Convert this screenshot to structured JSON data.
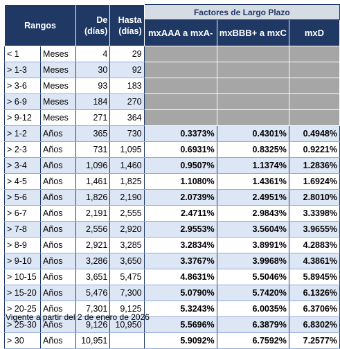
{
  "header": {
    "rangos": "Rangos",
    "de_line1": "De",
    "de_line2": "(días)",
    "hasta_line1": "Hasta",
    "hasta_line2": "(días)",
    "factores": "Factores de Largo Plazo",
    "col_aaa": "mxAAA a mxA-",
    "col_bbb": "mxBBB+ a mxC",
    "col_d": "mxD"
  },
  "rows": [
    {
      "range": "< 1",
      "unit": "Meses",
      "de": "4",
      "hasta": "29",
      "aaa": "",
      "bbb": "",
      "d": "",
      "grey": true
    },
    {
      "range": "> 1-3",
      "unit": "Meses",
      "de": "30",
      "hasta": "92",
      "aaa": "",
      "bbb": "",
      "d": "",
      "grey": true
    },
    {
      "range": "> 3-6",
      "unit": "Meses",
      "de": "93",
      "hasta": "183",
      "aaa": "",
      "bbb": "",
      "d": "",
      "grey": true
    },
    {
      "range": "> 6-9",
      "unit": "Meses",
      "de": "184",
      "hasta": "270",
      "aaa": "",
      "bbb": "",
      "d": "",
      "grey": true
    },
    {
      "range": "> 9-12",
      "unit": "Meses",
      "de": "271",
      "hasta": "364",
      "aaa": "",
      "bbb": "",
      "d": "",
      "grey": true
    },
    {
      "range": "> 1-2",
      "unit": "Años",
      "de": "365",
      "hasta": "730",
      "aaa": "0.3373%",
      "bbb": "0.4301%",
      "d": "0.4948%",
      "grey": false
    },
    {
      "range": "> 2-3",
      "unit": "Años",
      "de": "731",
      "hasta": "1,095",
      "aaa": "0.6931%",
      "bbb": "0.8325%",
      "d": "0.9221%",
      "grey": false
    },
    {
      "range": "> 3-4",
      "unit": "Años",
      "de": "1,096",
      "hasta": "1,460",
      "aaa": "0.9507%",
      "bbb": "1.1374%",
      "d": "1.2836%",
      "grey": false
    },
    {
      "range": "> 4-5",
      "unit": "Años",
      "de": "1,461",
      "hasta": "1,825",
      "aaa": "1.1080%",
      "bbb": "1.4361%",
      "d": "1.6924%",
      "grey": false
    },
    {
      "range": "> 5-6",
      "unit": "Años",
      "de": "1,826",
      "hasta": "2,190",
      "aaa": "2.0739%",
      "bbb": "2.4951%",
      "d": "2.8010%",
      "grey": false
    },
    {
      "range": "> 6-7",
      "unit": "Años",
      "de": "2,191",
      "hasta": "2,555",
      "aaa": "2.4711%",
      "bbb": "2.9843%",
      "d": "3.3398%",
      "grey": false
    },
    {
      "range": "> 7-8",
      "unit": "Años",
      "de": "2,556",
      "hasta": "2,920",
      "aaa": "2.9553%",
      "bbb": "3.5604%",
      "d": "3.9655%",
      "grey": false
    },
    {
      "range": "> 8-9",
      "unit": "Años",
      "de": "2,921",
      "hasta": "3,285",
      "aaa": "3.2834%",
      "bbb": "3.8991%",
      "d": "4.2883%",
      "grey": false
    },
    {
      "range": "> 9-10",
      "unit": "Años",
      "de": "3,286",
      "hasta": "3,650",
      "aaa": "3.3767%",
      "bbb": "3.9968%",
      "d": "4.3861%",
      "grey": false
    },
    {
      "range": "> 10-15",
      "unit": "Años",
      "de": "3,651",
      "hasta": "5,475",
      "aaa": "4.8631%",
      "bbb": "5.5046%",
      "d": "5.8945%",
      "grey": false
    },
    {
      "range": "> 15-20",
      "unit": "Años",
      "de": "5,476",
      "hasta": "7,300",
      "aaa": "5.0790%",
      "bbb": "5.7420%",
      "d": "6.1326%",
      "grey": false
    },
    {
      "range": "> 20-25",
      "unit": "Años",
      "de": "7,301",
      "hasta": "9,125",
      "aaa": "5.3243%",
      "bbb": "6.0035%",
      "d": "6.3706%",
      "grey": false
    },
    {
      "range": "> 25-30",
      "unit": "Años",
      "de": "9,126",
      "hasta": "10,950",
      "aaa": "5.5696%",
      "bbb": "6.3879%",
      "d": "6.8302%",
      "grey": false
    },
    {
      "range": "> 30",
      "unit": "Años",
      "de": "10,951",
      "hasta": "",
      "aaa": "5.9092%",
      "bbb": "6.7592%",
      "d": "7.2577%",
      "grey": false
    }
  ],
  "footnote": "Vigente a partir del 2 de enero de 2026"
}
